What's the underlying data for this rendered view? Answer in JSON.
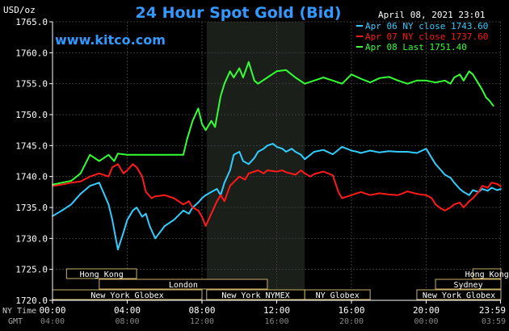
{
  "header": {
    "title": "24 Hour Spot Gold (Bid)",
    "unit": "USD/oz",
    "timestamp": "April 08, 2021 23:01",
    "website": "www.kitco.com"
  },
  "legend": [
    {
      "label": "Apr 06 NY close 1743.60",
      "color": "#33ccff"
    },
    {
      "label": "Apr 07 NY close 1737.60",
      "color": "#ff1a1a"
    },
    {
      "label": "Apr 08 Last 1751.40",
      "color": "#33ff33"
    }
  ],
  "axis_labels": {
    "ny_time": "NY Time",
    "gmt": "GMT"
  },
  "sessions": [
    {
      "name": "Hong Kong",
      "row": 0,
      "start": 0.75,
      "end": 4.5
    },
    {
      "name": "Hong Kong",
      "row": 0,
      "start": 22.5,
      "end": 24
    },
    {
      "name": "London",
      "row": 1,
      "start": 2.5,
      "end": 11.5
    },
    {
      "name": "Sydney",
      "row": 1,
      "start": 20.5,
      "end": 24
    },
    {
      "name": "New York Globex",
      "row": 2,
      "start": 0,
      "end": 8
    },
    {
      "name": "New York NYMEX",
      "row": 2,
      "start": 8.25,
      "end": 13.5
    },
    {
      "name": "NY Globex",
      "row": 2,
      "start": 13.5,
      "end": 17
    },
    {
      "name": "New York Globex",
      "row": 2,
      "start": 19.5,
      "end": 24
    }
  ],
  "chart_data": {
    "type": "line",
    "title": "24 Hour Spot Gold (Bid)",
    "ylabel": "USD/oz",
    "ylim": [
      1720.0,
      1765.0
    ],
    "xlim": [
      0,
      24
    ],
    "yticks": [
      "1720.0",
      "1725.0",
      "1730.0",
      "1735.0",
      "1740.0",
      "1745.0",
      "1750.0",
      "1755.0",
      "1760.0",
      "1765.0"
    ],
    "ytick_values": [
      1720,
      1725,
      1730,
      1735,
      1740,
      1745,
      1750,
      1755,
      1760,
      1765
    ],
    "xticks_ny": [
      "00:00",
      "04:00",
      "08:00",
      "12:00",
      "16:00",
      "20:00",
      "23:59"
    ],
    "xticks_gmt": [
      "04:00",
      "08:00",
      "12:00",
      "16:00",
      "20:00",
      "00:00",
      "03:59"
    ],
    "xtick_values": [
      0,
      4,
      8,
      12,
      16,
      20,
      23.98
    ],
    "highlight_range": [
      8.25,
      13.5
    ],
    "grid": true,
    "series": [
      {
        "name": "Apr 06 NY close 1743.60",
        "color": "#33ccff",
        "x": [
          0,
          0.5,
          1,
          1.5,
          2,
          2.5,
          3,
          3.2,
          3.5,
          3.8,
          4,
          4.3,
          4.5,
          4.8,
          5,
          5.2,
          5.5,
          6,
          6.5,
          7,
          7.3,
          7.5,
          7.8,
          8,
          8.2,
          8.5,
          8.8,
          9,
          9.2,
          9.5,
          9.7,
          10,
          10.2,
          10.5,
          10.8,
          11,
          11.3,
          11.5,
          11.8,
          12,
          12.3,
          12.5,
          12.8,
          13,
          13.3,
          13.5,
          13.8,
          14,
          14.5,
          15,
          15.5,
          16,
          16.3,
          16.5,
          17,
          17.5,
          18,
          18.5,
          19,
          19.5,
          20,
          20.3,
          20.5,
          20.8,
          21,
          21.3,
          21.5,
          21.8,
          22,
          22.3,
          22.5,
          22.8,
          23,
          23.3,
          23.5,
          23.8,
          24
        ],
        "values": [
          1733.6,
          1734.5,
          1735.5,
          1737.2,
          1738.5,
          1739.0,
          1735.5,
          1733.0,
          1728.2,
          1731.0,
          1733.0,
          1734.5,
          1735.0,
          1733.5,
          1734.0,
          1732.0,
          1730.0,
          1732.0,
          1733.0,
          1734.5,
          1734.0,
          1735.0,
          1735.8,
          1736.5,
          1737.0,
          1737.5,
          1738.0,
          1737.0,
          1739.0,
          1741.0,
          1743.5,
          1744.0,
          1742.5,
          1742.0,
          1743.0,
          1744.0,
          1744.5,
          1745.0,
          1745.3,
          1744.8,
          1744.5,
          1744.0,
          1744.5,
          1744.0,
          1743.5,
          1742.8,
          1743.5,
          1744.0,
          1744.3,
          1743.6,
          1744.8,
          1744.2,
          1744.0,
          1743.8,
          1744.2,
          1743.9,
          1744.1,
          1744.0,
          1744.0,
          1743.8,
          1744.5,
          1743.0,
          1742.0,
          1741.0,
          1740.3,
          1739.8,
          1739.0,
          1738.0,
          1737.5,
          1737.0,
          1737.8,
          1737.5,
          1738.0,
          1737.7,
          1738.2,
          1737.8,
          1738.0
        ]
      },
      {
        "name": "Apr 07 NY close 1737.60",
        "color": "#ff1a1a",
        "x": [
          0,
          0.5,
          1,
          1.5,
          2,
          2.5,
          3,
          3.2,
          3.5,
          3.8,
          4,
          4.3,
          4.5,
          4.8,
          5,
          5.3,
          5.5,
          6,
          6.5,
          7,
          7.3,
          7.5,
          7.8,
          8,
          8.2,
          8.5,
          8.8,
          9,
          9.2,
          9.5,
          10,
          10.3,
          10.5,
          11,
          11.3,
          11.5,
          12,
          12.3,
          12.5,
          13,
          13.3,
          13.5,
          13.8,
          14,
          14.5,
          15,
          15.3,
          15.5,
          16,
          16.5,
          17,
          17.5,
          18,
          18.5,
          19,
          19.5,
          20,
          20.3,
          20.5,
          20.8,
          21,
          21.3,
          21.5,
          21.8,
          22,
          22.3,
          22.5,
          22.8,
          23,
          23.3,
          23.5,
          23.8,
          24
        ],
        "values": [
          1738.5,
          1738.7,
          1739.0,
          1739.2,
          1740.0,
          1740.5,
          1740.0,
          1741.5,
          1742.0,
          1740.5,
          1741.0,
          1742.0,
          1741.5,
          1740.0,
          1737.5,
          1736.5,
          1736.8,
          1737.0,
          1736.5,
          1735.5,
          1736.0,
          1735.0,
          1734.5,
          1733.5,
          1732.0,
          1734.0,
          1736.0,
          1737.0,
          1736.0,
          1738.5,
          1740.0,
          1739.5,
          1740.5,
          1741.0,
          1740.5,
          1741.0,
          1740.8,
          1741.0,
          1740.7,
          1740.3,
          1741.0,
          1740.5,
          1740.0,
          1740.4,
          1740.8,
          1740.2,
          1737.5,
          1736.5,
          1737.0,
          1737.5,
          1737.0,
          1737.3,
          1737.1,
          1737.0,
          1737.6,
          1737.2,
          1737.0,
          1736.5,
          1735.5,
          1734.8,
          1734.5,
          1735.0,
          1735.5,
          1735.8,
          1735.0,
          1736.0,
          1736.5,
          1737.5,
          1738.5,
          1738.2,
          1739.0,
          1738.8,
          1738.4
        ]
      },
      {
        "name": "Apr 08 Last 1751.40",
        "color": "#33ff33",
        "x": [
          0,
          0.5,
          1,
          1.5,
          2,
          2.5,
          3,
          3.3,
          3.5,
          4,
          4.5,
          5,
          5.5,
          6,
          6.5,
          7,
          7.2,
          7.5,
          7.8,
          8,
          8.2,
          8.5,
          8.7,
          9,
          9.2,
          9.5,
          9.7,
          10,
          10.2,
          10.5,
          10.8,
          11,
          11.5,
          12,
          12.5,
          13,
          13.5,
          14,
          14.5,
          15,
          15.5,
          16,
          16.5,
          17,
          17.5,
          18,
          18.5,
          19,
          19.5,
          20,
          20.5,
          21,
          21.3,
          21.5,
          21.8,
          22,
          22.3,
          22.5,
          22.8,
          23,
          23.2,
          23.4,
          23.6
        ],
        "values": [
          1738.7,
          1739.0,
          1739.3,
          1740.5,
          1743.5,
          1742.5,
          1743.5,
          1742.5,
          1743.7,
          1743.5,
          1743.5,
          1743.5,
          1743.5,
          1743.5,
          1743.5,
          1743.5,
          1746.0,
          1749.0,
          1751.0,
          1748.5,
          1747.5,
          1749.0,
          1748.0,
          1753.0,
          1755.0,
          1757.0,
          1756.0,
          1757.5,
          1756.0,
          1758.5,
          1755.5,
          1755.0,
          1756.0,
          1757.0,
          1757.2,
          1756.0,
          1755.0,
          1755.5,
          1756.0,
          1755.5,
          1755.0,
          1756.5,
          1755.8,
          1755.2,
          1755.9,
          1756.1,
          1755.5,
          1755.0,
          1755.5,
          1755.5,
          1755.2,
          1755.5,
          1755.0,
          1756.0,
          1756.5,
          1755.5,
          1757.0,
          1756.5,
          1755.0,
          1754.0,
          1752.8,
          1752.2,
          1751.4
        ]
      }
    ]
  }
}
